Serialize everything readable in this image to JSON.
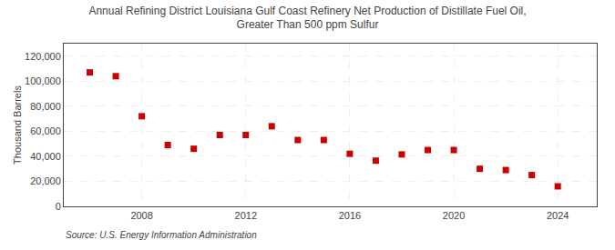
{
  "chart_data": {
    "type": "scatter",
    "title": "Annual Refining District Louisiana Gulf Coast Refinery Net Production of Distillate Fuel Oil,\nGreater Than 500 ppm Sulfur",
    "ylabel": "Thousand Barrels",
    "source": "Source: U.S. Energy Information Administration",
    "x": [
      2006,
      2007,
      2008,
      2009,
      2010,
      2011,
      2012,
      2013,
      2014,
      2015,
      2016,
      2017,
      2018,
      2019,
      2020,
      2021,
      2022,
      2023,
      2024
    ],
    "values": [
      107000,
      104000,
      72000,
      49000,
      46000,
      57000,
      57000,
      64000,
      53000,
      53000,
      42000,
      36500,
      41500,
      45000,
      45000,
      30000,
      29000,
      25000,
      16000
    ],
    "color": "#cc0000",
    "marker": "square",
    "xlim": [
      2005,
      2025.5
    ],
    "xticks": [
      2008,
      2012,
      2016,
      2020,
      2024
    ],
    "ylim": [
      0,
      130000
    ],
    "yticks": [
      0,
      {
        "value": 20000,
        "label": "20,000"
      },
      {
        "value": 40000,
        "label": "40,000"
      },
      {
        "value": 60000,
        "label": "60,000"
      },
      {
        "value": 80000,
        "label": "80,000"
      },
      {
        "value": 100000,
        "label": "100,000"
      },
      {
        "value": 120000,
        "label": "120,000"
      }
    ],
    "grid": true
  }
}
